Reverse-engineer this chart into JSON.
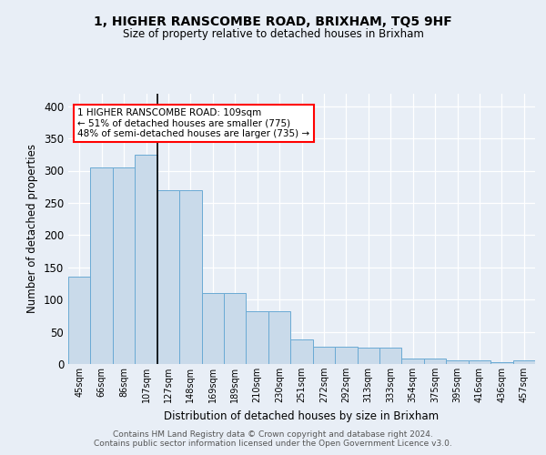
{
  "title": "1, HIGHER RANSCOMBE ROAD, BRIXHAM, TQ5 9HF",
  "subtitle": "Size of property relative to detached houses in Brixham",
  "xlabel": "Distribution of detached houses by size in Brixham",
  "ylabel": "Number of detached properties",
  "categories": [
    "45sqm",
    "66sqm",
    "86sqm",
    "107sqm",
    "127sqm",
    "148sqm",
    "169sqm",
    "189sqm",
    "210sqm",
    "230sqm",
    "251sqm",
    "272sqm",
    "292sqm",
    "313sqm",
    "333sqm",
    "354sqm",
    "375sqm",
    "395sqm",
    "416sqm",
    "436sqm",
    "457sqm"
  ],
  "bar_heights": [
    135,
    305,
    305,
    325,
    270,
    270,
    110,
    110,
    82,
    82,
    38,
    27,
    27,
    26,
    26,
    9,
    9,
    5,
    5,
    3,
    5
  ],
  "bar_color": "#c9daea",
  "bar_edge_color": "#6aaad4",
  "marker_label": "1 HIGHER RANSCOMBE ROAD: 109sqm",
  "annotation_line1": "← 51% of detached houses are smaller (775)",
  "annotation_line2": "48% of semi-detached houses are larger (735) →",
  "bg_color": "#e8eef6",
  "plot_bg_color": "#e8eef6",
  "ylim": [
    0,
    420
  ],
  "yticks": [
    0,
    50,
    100,
    150,
    200,
    250,
    300,
    350,
    400
  ],
  "footer1": "Contains HM Land Registry data © Crown copyright and database right 2024.",
  "footer2": "Contains public sector information licensed under the Open Government Licence v3.0."
}
